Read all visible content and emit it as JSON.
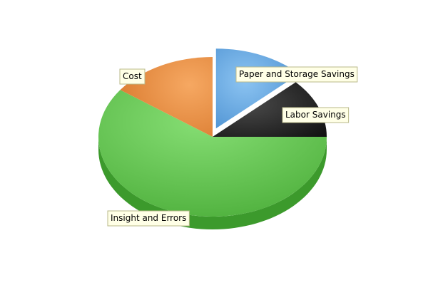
{
  "chart_data": {
    "type": "pie",
    "style": "3d",
    "exploded": [
      "Paper and Storage Savings"
    ],
    "slices": [
      {
        "label": "Paper and Storage Savings",
        "value": 13,
        "color": "#5b9bd5"
      },
      {
        "label": "Labor Savings",
        "value": 12,
        "color": "#2b2b2b"
      },
      {
        "label": "Insight and Errors",
        "value": 60,
        "color": "#5cbf4a"
      },
      {
        "label": "Cost",
        "value": 15,
        "color": "#e8893c"
      }
    ]
  }
}
